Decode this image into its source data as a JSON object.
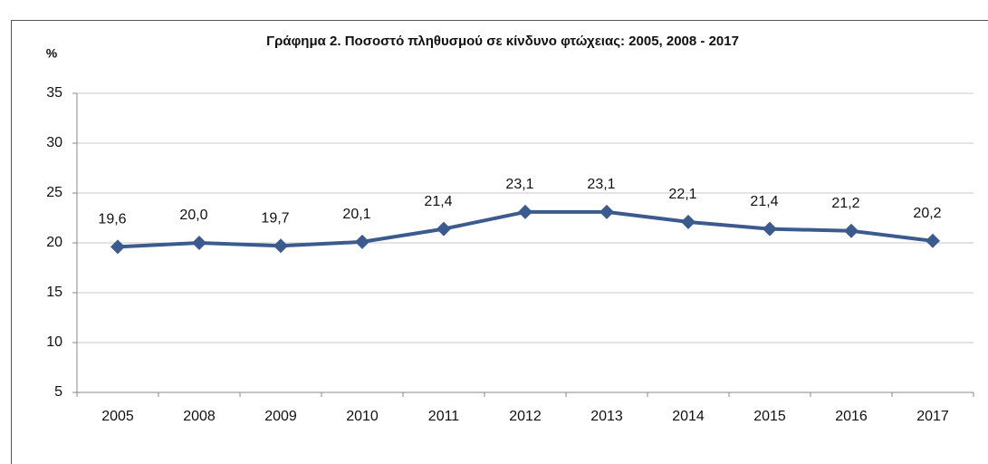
{
  "chart_data": {
    "type": "line",
    "title": "Γράφημα 2. Ποσοστό πληθυσμού σε κίνδυνο φτώχειας: 2005, 2008 - 2017",
    "y_label": "%",
    "categories": [
      "2005",
      "2008",
      "2009",
      "2010",
      "2011",
      "2012",
      "2013",
      "2014",
      "2015",
      "2016",
      "2017"
    ],
    "values": [
      19.6,
      20.0,
      19.7,
      20.1,
      21.4,
      23.1,
      23.1,
      22.1,
      21.4,
      21.2,
      20.2
    ],
    "value_labels": [
      "19,6",
      "20,0",
      "19,7",
      "20,1",
      "21,4",
      "23,1",
      "23,1",
      "22,1",
      "21,4",
      "21,2",
      "20,2"
    ],
    "color": "#3b5b8e",
    "ylim": [
      5,
      35
    ],
    "yticks": [
      5,
      10,
      15,
      20,
      25,
      30,
      35
    ],
    "grid": true
  }
}
